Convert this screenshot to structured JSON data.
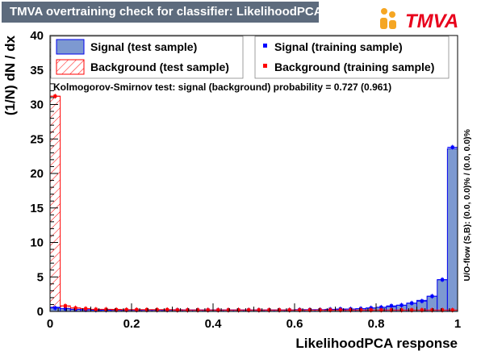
{
  "title": "TMVA overtraining check for classifier: LikelihoodPCA",
  "logo": {
    "text": "TMVA",
    "accent": "#e8001c",
    "dot_color": "#f5a623"
  },
  "colors": {
    "signal_fill": "#7d99d1",
    "signal_line": "#0000ee",
    "background_hatch": "#ff0000",
    "signal_marker": "#0000ff",
    "background_marker": "#ff0000"
  },
  "legend": {
    "signal_test": "Signal (test sample)",
    "background_test": "Background (test sample)",
    "signal_train": "Signal (training sample)",
    "background_train": "Background (training sample)"
  },
  "ks_text": "Kolmogorov-Smirnov test: signal (background) probability = 0.727 (0.961)",
  "overflow_text": "U/O-flow (S,B): (0.0, 0.0)% / (0.0, 0.0)%",
  "chart_data": {
    "type": "bar",
    "xlabel": "LikelihoodPCA response",
    "ylabel": "(1/N) dN / dx",
    "xlim": [
      0,
      1
    ],
    "ylim": [
      0,
      40
    ],
    "xticks": [
      0,
      0.2,
      0.4,
      0.6,
      0.8,
      1
    ],
    "xtick_labels": [
      "0",
      "0.2",
      "0.4",
      "0.6",
      "0.8",
      "1"
    ],
    "yticks": [
      0,
      5,
      10,
      15,
      20,
      25,
      30,
      35,
      40
    ],
    "ytick_labels": [
      "0",
      "5",
      "10",
      "15",
      "20",
      "25",
      "30",
      "35",
      "40"
    ],
    "bins": 40,
    "grid": false,
    "legend_position": "top",
    "series": [
      {
        "name": "Signal (test sample)",
        "style": "filled-histogram",
        "values": [
          0.6,
          0.4,
          0.3,
          0.25,
          0.2,
          0.2,
          0.2,
          0.2,
          0.2,
          0.2,
          0.2,
          0.2,
          0.2,
          0.2,
          0.2,
          0.2,
          0.2,
          0.2,
          0.2,
          0.2,
          0.2,
          0.2,
          0.2,
          0.2,
          0.25,
          0.25,
          0.25,
          0.3,
          0.3,
          0.35,
          0.4,
          0.5,
          0.6,
          0.7,
          0.9,
          1.2,
          1.6,
          2.2,
          4.6,
          23.6
        ]
      },
      {
        "name": "Background (test sample)",
        "style": "hatched-histogram",
        "values": [
          31.2,
          0.8,
          0.5,
          0.4,
          0.3,
          0.3,
          0.3,
          0.25,
          0.25,
          0.25,
          0.25,
          0.25,
          0.25,
          0.2,
          0.2,
          0.2,
          0.2,
          0.2,
          0.2,
          0.2,
          0.2,
          0.2,
          0.2,
          0.2,
          0.2,
          0.2,
          0.2,
          0.2,
          0.2,
          0.2,
          0.2,
          0.2,
          0.2,
          0.2,
          0.2,
          0.2,
          0.2,
          0.2,
          0.2,
          0.2
        ]
      },
      {
        "name": "Signal (training sample)",
        "style": "markers",
        "values": [
          0.5,
          0.4,
          0.3,
          0.25,
          0.2,
          0.2,
          0.2,
          0.2,
          0.2,
          0.2,
          0.2,
          0.2,
          0.2,
          0.2,
          0.2,
          0.2,
          0.2,
          0.2,
          0.2,
          0.2,
          0.2,
          0.2,
          0.2,
          0.2,
          0.25,
          0.25,
          0.25,
          0.3,
          0.35,
          0.35,
          0.4,
          0.5,
          0.6,
          0.8,
          0.9,
          1.2,
          1.5,
          2.2,
          4.6,
          23.8
        ]
      },
      {
        "name": "Background (training sample)",
        "style": "markers",
        "values": [
          31.2,
          0.8,
          0.5,
          0.4,
          0.3,
          0.3,
          0.25,
          0.25,
          0.25,
          0.25,
          0.25,
          0.25,
          0.2,
          0.2,
          0.2,
          0.2,
          0.2,
          0.2,
          0.2,
          0.2,
          0.2,
          0.2,
          0.2,
          0.2,
          0.2,
          0.2,
          0.2,
          0.2,
          0.2,
          0.2,
          0.2,
          0.2,
          0.2,
          0.2,
          0.2,
          0.2,
          0.2,
          0.2,
          0.2,
          0.2
        ]
      }
    ]
  }
}
